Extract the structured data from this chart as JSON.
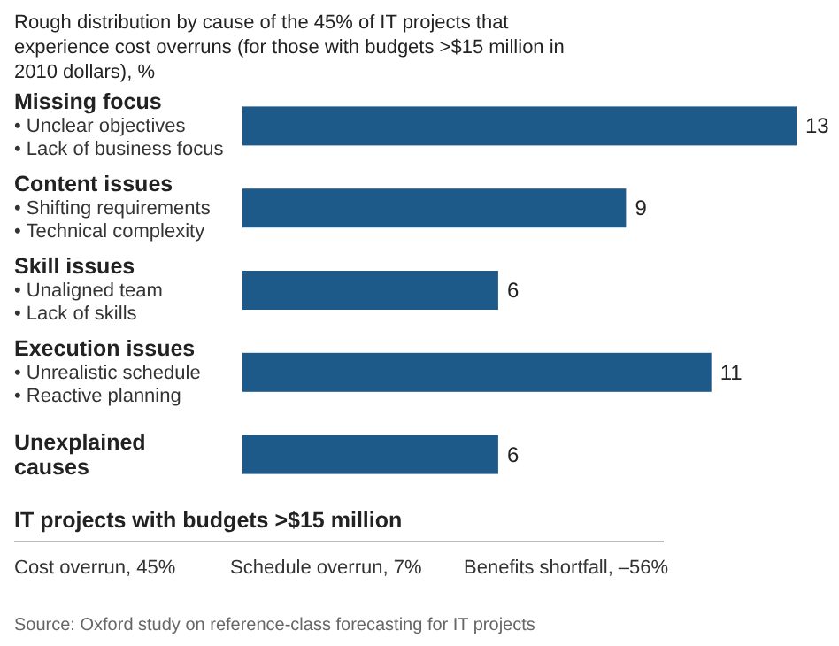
{
  "chart_data": {
    "type": "bar",
    "orientation": "horizontal",
    "title": "Rough distribution by cause of the 45% of IT projects that experience cost overruns (for those with budgets >$15 million in 2010 dollars), %",
    "categories": [
      "Missing focus\n• Unclear objectives\n• Lack of business focus",
      "Content issues\n• Shifting requirements\n• Technical complexity",
      "Skill issues\n• Unaligned team\n• Lack of skills",
      "Execution issues\n• Unrealistic schedule\n• Reactive planning",
      "Unexplained causes"
    ],
    "values": [
      13,
      9,
      6,
      11,
      6
    ],
    "color": "#1d5a8a",
    "data_labels": true,
    "annotations": [
      "IT projects with budgets >$15 million",
      "Cost overrun, 45%",
      "Schedule overrun, 7%",
      "Benefits shortfall, –56%",
      "Source: Oxford study on reference-class forecasting for IT projects"
    ]
  }
}
